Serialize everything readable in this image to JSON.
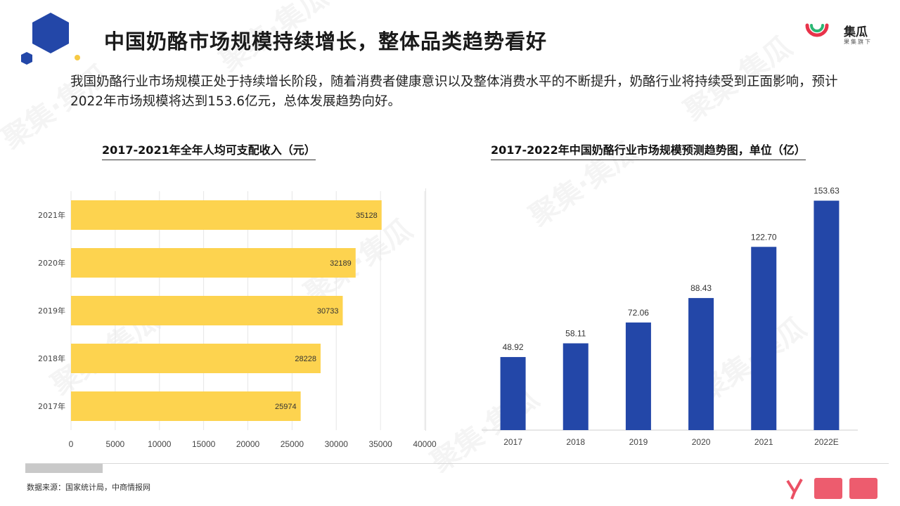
{
  "title": "中国奶酪市场规模持续增长，整体品类趋势看好",
  "intro": "我国奶酪行业市场规模正处于持续增长阶段，随着消费者健康意识以及整体消费水平的不断提升，奶酪行业将持续受到正面影响，预计2022年市场规模将达到153.6亿元，总体发展趋势向好。",
  "brand": {
    "name": "集瓜",
    "tagline": "果集旗下"
  },
  "watermark": "聚集·集瓜",
  "source": "数据来源：国家统计局，中商情报网",
  "colors": {
    "bar_yellow": "#FDD34F",
    "bar_blue": "#2347A8",
    "hex_blue": "#2347A8",
    "hex_yellow": "#F6C944"
  },
  "chart_data": [
    {
      "type": "bar",
      "orientation": "horizontal",
      "title": "2017-2021年全年人均可支配收入（元）",
      "categories": [
        "2021年",
        "2020年",
        "2019年",
        "2018年",
        "2017年"
      ],
      "values": [
        35128,
        32189,
        30733,
        28228,
        25974
      ],
      "xlim": [
        0,
        40000
      ],
      "xticks": [
        "0",
        "5000",
        "10000",
        "15000",
        "20000",
        "25000",
        "30000",
        "35000",
        "40000"
      ],
      "grid": true
    },
    {
      "type": "bar",
      "orientation": "vertical",
      "title": "2017-2022年中国奶酪行业市场规模预测趋势图，单位（亿）",
      "categories": [
        "2017",
        "2018",
        "2019",
        "2020",
        "2021",
        "2022E"
      ],
      "values": [
        48.92,
        58.11,
        72.06,
        88.43,
        122.7,
        153.63
      ],
      "labels": [
        "48.92",
        "58.11",
        "72.06",
        "88.43",
        "122.70",
        "153.63"
      ],
      "ylim": [
        0,
        160
      ],
      "grid": false
    }
  ]
}
